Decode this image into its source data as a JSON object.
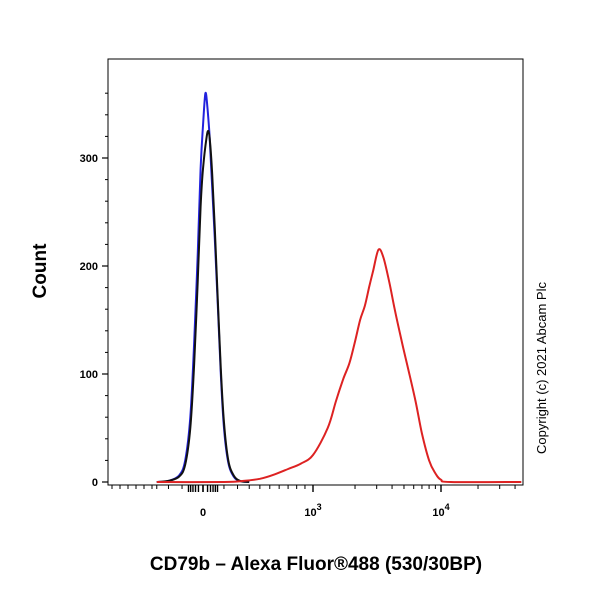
{
  "chart_data": {
    "type": "line",
    "xlabel": "CD79b – Alexa Fluor®488 (530/30BP)",
    "ylabel": "Count",
    "ylim": [
      0,
      375
    ],
    "yticks": [
      {
        "value": 0,
        "label": "0"
      },
      {
        "value": 100,
        "label": "100"
      },
      {
        "value": 200,
        "label": "200"
      },
      {
        "value": 300,
        "label": "300"
      }
    ],
    "xscale": "logicle",
    "xticks": [
      {
        "value": 0,
        "base": "0",
        "exp": ""
      },
      {
        "value": 1000,
        "base": "10",
        "exp": "3"
      },
      {
        "value": 10000,
        "base": "10",
        "exp": "4"
      }
    ],
    "annotation": "Copyright (c) 2021 Abcam Plc",
    "series": [
      {
        "color": "#2222dd",
        "points": [
          [
            -300,
            0
          ],
          [
            -200,
            1
          ],
          [
            -120,
            6
          ],
          [
            -80,
            20
          ],
          [
            -50,
            60
          ],
          [
            -30,
            130
          ],
          [
            -15,
            210
          ],
          [
            -5,
            290
          ],
          [
            0,
            330
          ],
          [
            5,
            360
          ],
          [
            12,
            345
          ],
          [
            20,
            320
          ],
          [
            30,
            280
          ],
          [
            45,
            225
          ],
          [
            60,
            170
          ],
          [
            80,
            100
          ],
          [
            100,
            50
          ],
          [
            130,
            18
          ],
          [
            170,
            5
          ],
          [
            220,
            1
          ],
          [
            300,
            0
          ]
        ]
      },
      {
        "color": "#111111",
        "points": [
          [
            -300,
            0
          ],
          [
            -200,
            1
          ],
          [
            -120,
            5
          ],
          [
            -80,
            16
          ],
          [
            -50,
            50
          ],
          [
            -30,
            110
          ],
          [
            -15,
            185
          ],
          [
            -5,
            255
          ],
          [
            0,
            290
          ],
          [
            8,
            318
          ],
          [
            15,
            325
          ],
          [
            22,
            315
          ],
          [
            32,
            285
          ],
          [
            45,
            235
          ],
          [
            60,
            175
          ],
          [
            80,
            105
          ],
          [
            100,
            55
          ],
          [
            130,
            20
          ],
          [
            170,
            6
          ],
          [
            220,
            1
          ],
          [
            300,
            0
          ]
        ]
      },
      {
        "color": "#dd2222",
        "points": [
          [
            -300,
            0
          ],
          [
            100,
            0
          ],
          [
            250,
            1
          ],
          [
            400,
            3
          ],
          [
            550,
            7
          ],
          [
            700,
            12
          ],
          [
            850,
            17
          ],
          [
            1000,
            25
          ],
          [
            1200,
            50
          ],
          [
            1400,
            75
          ],
          [
            1600,
            95
          ],
          [
            1800,
            110
          ],
          [
            2000,
            130
          ],
          [
            2200,
            150
          ],
          [
            2400,
            163
          ],
          [
            2600,
            180
          ],
          [
            2800,
            195
          ],
          [
            3100,
            215
          ],
          [
            3400,
            208
          ],
          [
            3800,
            185
          ],
          [
            4200,
            160
          ],
          [
            4800,
            130
          ],
          [
            5400,
            105
          ],
          [
            6200,
            75
          ],
          [
            7000,
            45
          ],
          [
            8000,
            20
          ],
          [
            9000,
            8
          ],
          [
            10000,
            2
          ],
          [
            12000,
            0
          ],
          [
            45000,
            0
          ]
        ]
      }
    ]
  }
}
